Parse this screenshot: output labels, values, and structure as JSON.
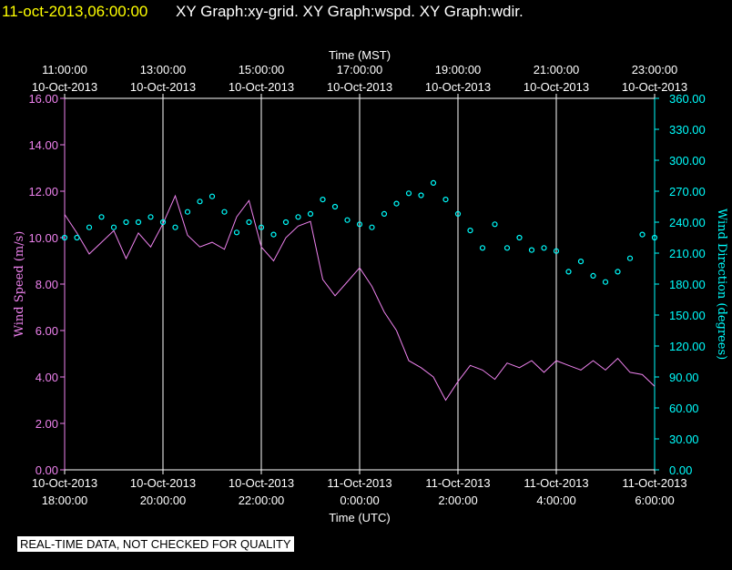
{
  "header": {
    "timestamp": "11-oct-2013,06:00:00",
    "graph_names": "XY Graph:xy-grid.  XY Graph:wspd.  XY Graph:wdir."
  },
  "disclaimer": "REAL-TIME DATA, NOT CHECKED FOR QUALITY",
  "colors": {
    "background": "#000000",
    "header_timestamp": "#ffff00",
    "text": "#ffffff",
    "wind_speed": "#ee82ee",
    "wind_direction": "#00ffff",
    "grid": "#ffffff"
  },
  "chart_data": {
    "type": "line",
    "grid": true,
    "top_axis": {
      "title": "Time (MST)",
      "ticks": [
        {
          "time": "11:00:00",
          "date": "10-Oct-2013"
        },
        {
          "time": "13:00:00",
          "date": "10-Oct-2013"
        },
        {
          "time": "15:00:00",
          "date": "10-Oct-2013"
        },
        {
          "time": "17:00:00",
          "date": "10-Oct-2013"
        },
        {
          "time": "19:00:00",
          "date": "10-Oct-2013"
        },
        {
          "time": "21:00:00",
          "date": "10-Oct-2013"
        },
        {
          "time": "23:00:00",
          "date": "10-Oct-2013"
        }
      ]
    },
    "bottom_axis": {
      "title": "Time (UTC)",
      "ticks": [
        {
          "date": "10-Oct-2013",
          "time": "18:00:00"
        },
        {
          "date": "10-Oct-2013",
          "time": "20:00:00"
        },
        {
          "date": "10-Oct-2013",
          "time": "22:00:00"
        },
        {
          "date": "11-Oct-2013",
          "time": "0:00:00"
        },
        {
          "date": "11-Oct-2013",
          "time": "2:00:00"
        },
        {
          "date": "11-Oct-2013",
          "time": "4:00:00"
        },
        {
          "date": "11-Oct-2013",
          "time": "6:00:00"
        }
      ]
    },
    "x_unit": "hours UTC",
    "xlim": [
      18,
      30
    ],
    "left_axis": {
      "title": "Wind Speed (m/s)",
      "ylim": [
        0,
        16
      ],
      "ticks": [
        "0.00",
        "2.00",
        "4.00",
        "6.00",
        "8.00",
        "10.00",
        "12.00",
        "14.00",
        "16.00"
      ]
    },
    "right_axis": {
      "title": "Wind Direction (degrees)",
      "ylim": [
        0,
        360
      ],
      "ticks": [
        "0.00",
        "30.00",
        "60.00",
        "90.00",
        "120.00",
        "150.00",
        "180.00",
        "210.00",
        "240.00",
        "270.00",
        "300.00",
        "330.00",
        "360.00"
      ]
    },
    "series": [
      {
        "name": "Wind Speed (m/s)",
        "axis": "left",
        "style": "line",
        "x": [
          18.0,
          18.25,
          18.5,
          18.75,
          19.0,
          19.25,
          19.5,
          19.75,
          20.0,
          20.25,
          20.5,
          20.75,
          21.0,
          21.25,
          21.5,
          21.75,
          22.0,
          22.25,
          22.5,
          22.75,
          23.0,
          23.25,
          23.5,
          23.75,
          24.0,
          24.25,
          24.5,
          24.75,
          25.0,
          25.25,
          25.5,
          25.75,
          26.0,
          26.25,
          26.5,
          26.75,
          27.0,
          27.25,
          27.5,
          27.75,
          28.0,
          28.25,
          28.5,
          28.75,
          29.0,
          29.25,
          29.5,
          29.75,
          30.0
        ],
        "y": [
          11.0,
          10.2,
          9.3,
          9.8,
          10.3,
          9.1,
          10.2,
          9.6,
          10.6,
          11.8,
          10.1,
          9.6,
          9.8,
          9.5,
          10.9,
          11.6,
          9.6,
          9.0,
          10.0,
          10.5,
          10.7,
          8.2,
          7.5,
          8.1,
          8.7,
          7.9,
          6.8,
          6.0,
          4.7,
          4.4,
          4.0,
          3.0,
          3.8,
          4.5,
          4.3,
          3.9,
          4.6,
          4.4,
          4.7,
          4.2,
          4.7,
          4.5,
          4.3,
          4.7,
          4.3,
          4.8,
          4.2,
          4.1,
          3.6
        ]
      },
      {
        "name": "Wind Direction (degrees)",
        "axis": "right",
        "style": "points",
        "x": [
          18.0,
          18.25,
          18.5,
          18.75,
          19.0,
          19.25,
          19.5,
          19.75,
          20.0,
          20.25,
          20.5,
          20.75,
          21.0,
          21.25,
          21.5,
          21.75,
          22.0,
          22.25,
          22.5,
          22.75,
          23.0,
          23.25,
          23.5,
          23.75,
          24.0,
          24.25,
          24.5,
          24.75,
          25.0,
          25.25,
          25.5,
          25.75,
          26.0,
          26.25,
          26.5,
          26.75,
          27.0,
          27.25,
          27.5,
          27.75,
          28.0,
          28.25,
          28.5,
          28.75,
          29.0,
          29.25,
          29.5,
          29.75,
          30.0
        ],
        "y": [
          225,
          225,
          235,
          245,
          235,
          240,
          240,
          245,
          240,
          235,
          250,
          260,
          265,
          250,
          230,
          240,
          235,
          228,
          240,
          245,
          248,
          262,
          255,
          242,
          238,
          235,
          248,
          258,
          268,
          266,
          278,
          262,
          248,
          232,
          215,
          238,
          215,
          225,
          213,
          215,
          212,
          192,
          202,
          188,
          182,
          192,
          205,
          228,
          225
        ]
      }
    ]
  }
}
